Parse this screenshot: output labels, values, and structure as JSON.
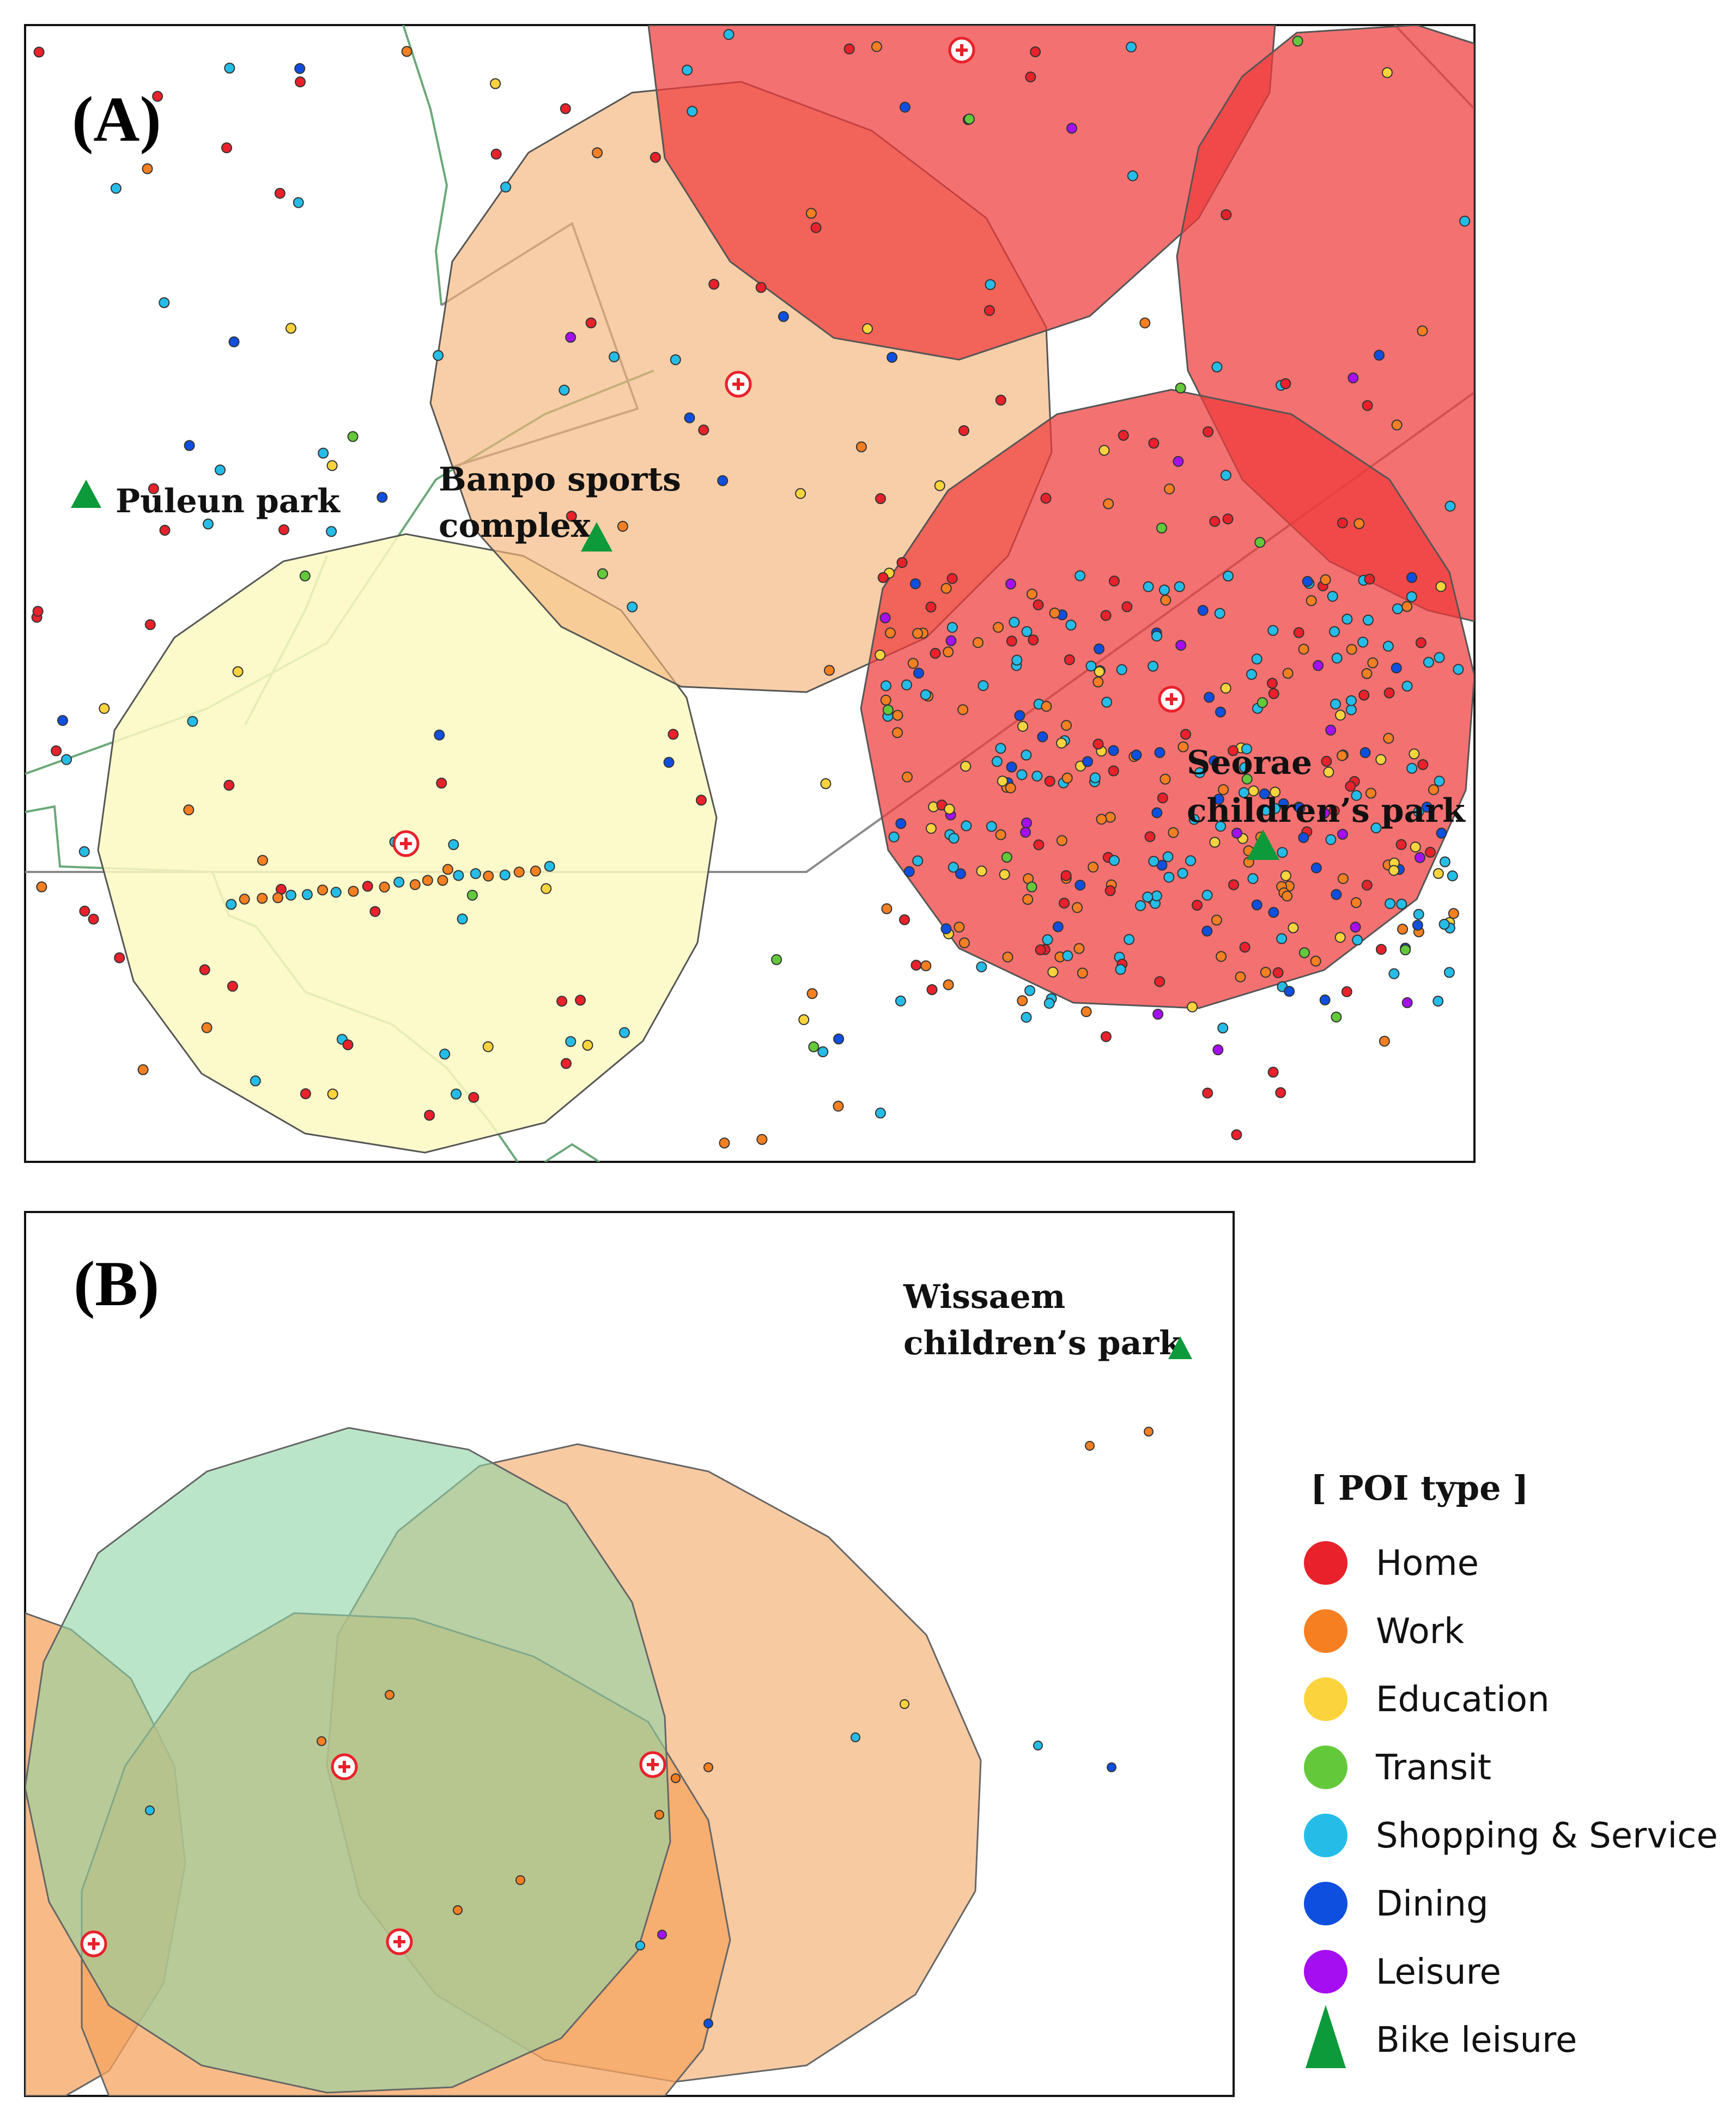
{
  "panels": {
    "a": {
      "label": "(A)"
    },
    "b": {
      "label": "(B)"
    }
  },
  "places": {
    "puleun": "Puleun park",
    "banpo_1": "Banpo sports",
    "banpo_2": "complex",
    "seorae_1": "Seorae",
    "seorae_2": "children’s park",
    "wissaem_1": "Wissaem",
    "wissaem_2": "children’s park"
  },
  "legend": {
    "title": "[ POI type ]",
    "items": [
      {
        "label": "Home",
        "color": "#e8212b",
        "shape": "circle"
      },
      {
        "label": "Work",
        "color": "#f57f21",
        "shape": "circle"
      },
      {
        "label": "Education",
        "color": "#fbd43d",
        "shape": "circle"
      },
      {
        "label": "Transit",
        "color": "#63c93a",
        "shape": "circle"
      },
      {
        "label": "Shopping & Service",
        "color": "#25bde8",
        "shape": "circle"
      },
      {
        "label": "Dining",
        "color": "#0f4fe0",
        "shape": "circle"
      },
      {
        "label": "Leisure",
        "color": "#a50ef0",
        "shape": "circle"
      },
      {
        "label": "Bike leisure",
        "color": "#0c9a3a",
        "shape": "triangle"
      }
    ]
  }
}
